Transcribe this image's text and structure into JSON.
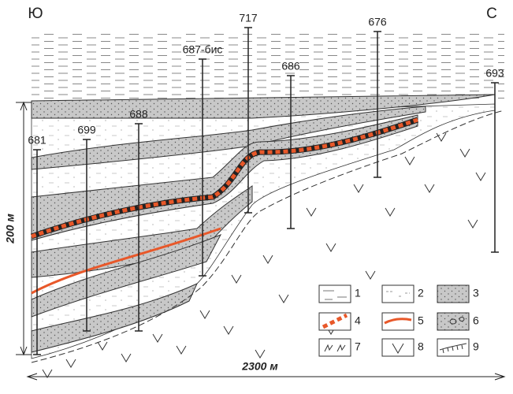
{
  "directions": {
    "left": "Ю",
    "right": "С"
  },
  "wells": [
    {
      "label": "681"
    },
    {
      "label": "699"
    },
    {
      "label": "688"
    },
    {
      "label": "687-бис"
    },
    {
      "label": "717"
    },
    {
      "label": "686"
    },
    {
      "label": "676"
    },
    {
      "label": "693"
    }
  ],
  "scale": {
    "vertical": "200 м",
    "horizontal": "2300 м"
  },
  "legend": [
    "1",
    "2",
    "3",
    "4",
    "5",
    "6",
    "7",
    "8",
    "9"
  ]
}
